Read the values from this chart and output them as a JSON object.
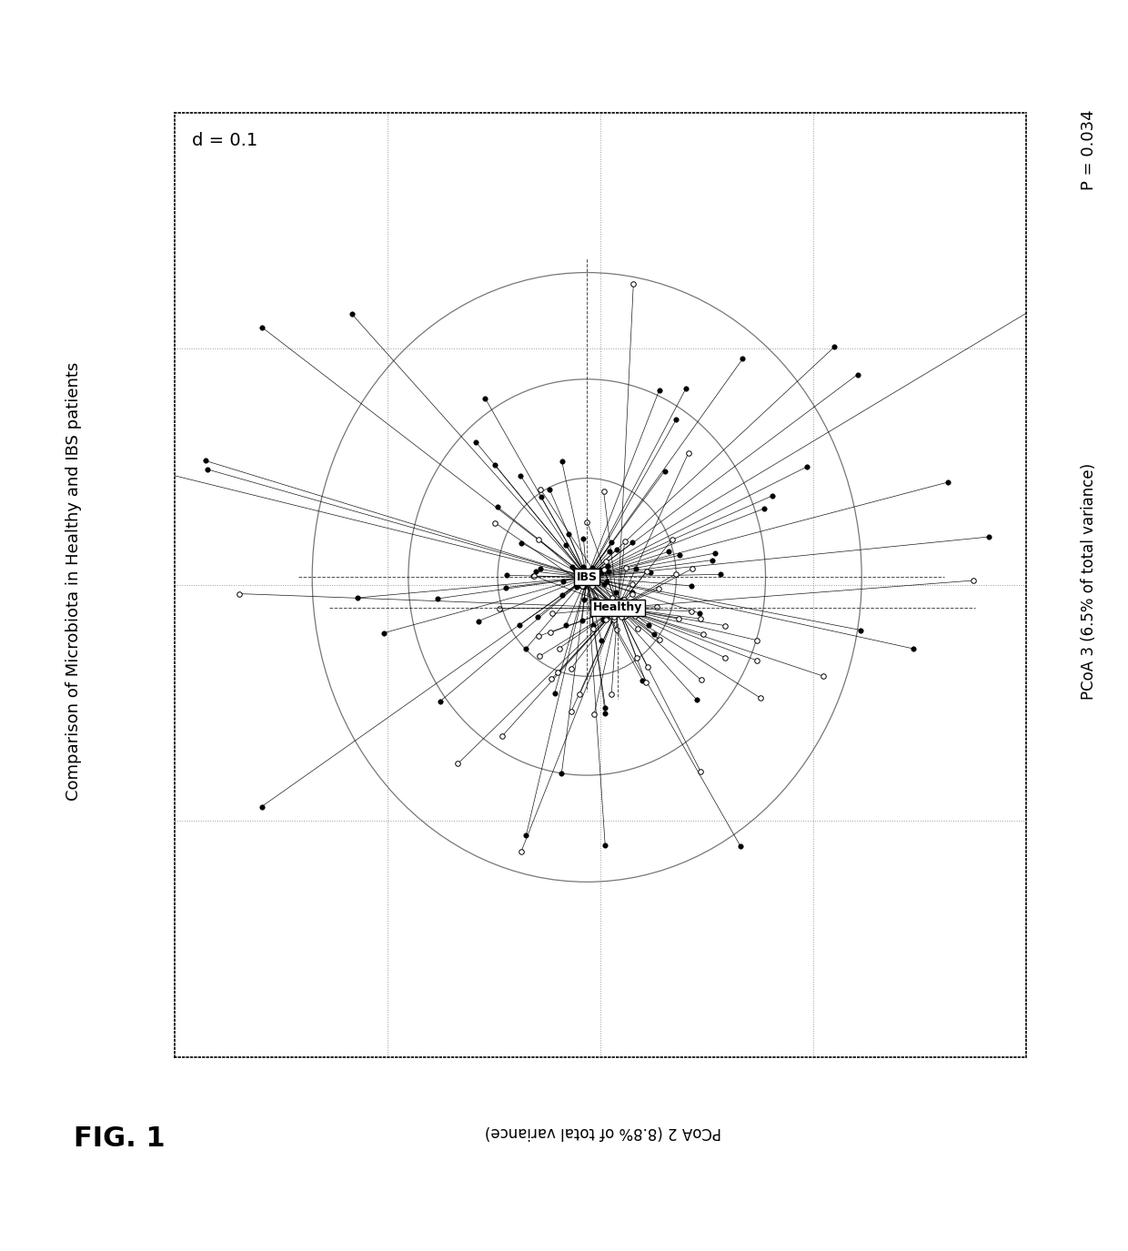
{
  "title": "Comparison of Microbiota in Healthy and IBS patients",
  "xlabel_rotated": "PCoA 2 (8.8% of total variance)",
  "ylabel": "PCoA 3 (6.5% of total variance)",
  "p_value_text": "P = 0.034",
  "d_text": "d = 0.1",
  "fig_label": "FIG. 1",
  "ibs_centroid": [
    -0.02,
    0.01
  ],
  "healthy_centroid": [
    0.025,
    -0.03
  ],
  "background_color": "#ffffff",
  "grid_color": "#aaaaaa",
  "seed": 42,
  "n_ibs": 100,
  "n_healthy": 80,
  "xlim": [
    -0.62,
    0.62
  ],
  "ylim": [
    -0.62,
    0.62
  ],
  "circle_radii": [
    0.13,
    0.26,
    0.4
  ]
}
